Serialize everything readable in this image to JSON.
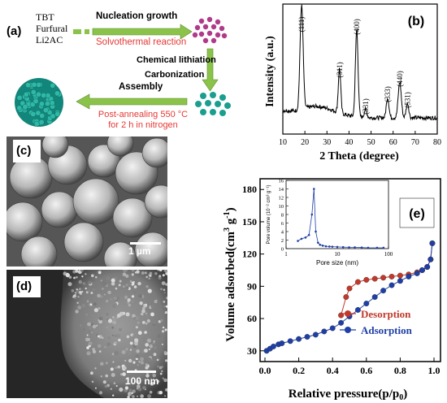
{
  "panel_a": {
    "label": "(a)",
    "precursors": [
      "TBT",
      "Furfural",
      "Li2AC"
    ],
    "step1_top": "Nucleation growth",
    "step1_bottom": "Solvothermal reaction",
    "step2_top": "Chemical lithiation",
    "step2_bottom": "Carbonization",
    "step3_top": "Assembly",
    "step3_bottom_1": "Post-annealing 550 °C",
    "step3_bottom_2": "for 2 h in nitrogen",
    "colors": {
      "arrow": "#8bc34a",
      "red_text": "#e53935",
      "pink_particles": "#b03a8a",
      "teal_particles": "#1a9e8f"
    }
  },
  "panel_b": {
    "label": "(b)",
    "peak_labels": [
      "(111)",
      "(311)",
      "(400)",
      "(331)",
      "(333)",
      "(440)",
      "(531)"
    ]
  },
  "panel_c": {
    "label": "(c)",
    "scale_bar": "1 µm"
  },
  "panel_d": {
    "label": "(d)",
    "scale_bar": "100 nm"
  },
  "panel_e": {
    "label": "(e)",
    "legend": [
      "Desorption",
      "Adsorption"
    ],
    "inset_xlabel": "Pore size (nm)",
    "inset_ylabel": "Pore volume (10⁻² cm³ g⁻¹)"
  },
  "chart_data": [
    {
      "type": "line",
      "xlabel": "2 Theta (degree)",
      "ylabel": "Intensity (a.u.)",
      "xlim": [
        10,
        80
      ],
      "xticks": [
        10,
        20,
        30,
        40,
        50,
        60,
        70,
        80
      ],
      "peaks": [
        {
          "x": 18.5,
          "label": "(111)"
        },
        {
          "x": 35.7,
          "label": "(311)"
        },
        {
          "x": 43.5,
          "label": "(400)"
        },
        {
          "x": 47.5,
          "label": "(331)"
        },
        {
          "x": 57.5,
          "label": "(333)"
        },
        {
          "x": 63.0,
          "label": "(440)"
        },
        {
          "x": 66.5,
          "label": "(531)"
        }
      ]
    },
    {
      "type": "line",
      "xlabel": "Relative pressure(p/p0)",
      "ylabel": "Volume adsorbed(cm3 g-1)",
      "xlim": [
        0.0,
        1.0
      ],
      "ylim": [
        20,
        190
      ],
      "xticks": [
        0.0,
        0.2,
        0.4,
        0.6,
        0.8,
        1.0
      ],
      "yticks": [
        30,
        60,
        90,
        120,
        150,
        180
      ],
      "series": [
        {
          "name": "Desorption",
          "color": "#c0392b",
          "x": [
            0.45,
            0.48,
            0.5,
            0.55,
            0.6,
            0.65,
            0.7,
            0.75,
            0.8,
            0.85,
            0.9,
            0.93,
            0.96,
            0.98,
            0.99
          ],
          "y": [
            63,
            80,
            88,
            94,
            96,
            97,
            98,
            99,
            100,
            101,
            103,
            105,
            108,
            115,
            130
          ]
        },
        {
          "name": "Adsorption",
          "color": "#1f3fa6",
          "x": [
            0.01,
            0.03,
            0.05,
            0.08,
            0.1,
            0.15,
            0.2,
            0.25,
            0.3,
            0.35,
            0.4,
            0.45,
            0.5,
            0.55,
            0.6,
            0.65,
            0.7,
            0.75,
            0.8,
            0.85,
            0.9,
            0.93,
            0.96,
            0.98,
            0.99
          ],
          "y": [
            30,
            32,
            34,
            36,
            37,
            39,
            41,
            43,
            45,
            48,
            51,
            56,
            62,
            68,
            74,
            80,
            86,
            91,
            95,
            99,
            102,
            105,
            108,
            115,
            130
          ]
        }
      ]
    },
    {
      "type": "line",
      "xlabel": "Pore size (nm)",
      "ylabel": "Pore volume (10⁻² cm³ g⁻¹)",
      "xscale": "log",
      "xlim": [
        1,
        100
      ],
      "ylim": [
        0,
        16
      ],
      "yticks": [
        0,
        2,
        4,
        6,
        8,
        10,
        12,
        14,
        16
      ],
      "series": [
        {
          "color": "#1f3fa6",
          "x": [
            1.7,
            2.0,
            2.4,
            2.8,
            3.2,
            3.5,
            3.8,
            4.2,
            4.6,
            5.2,
            6,
            7,
            8,
            10,
            13,
            17,
            22,
            30,
            40,
            60,
            80
          ],
          "y": [
            1.8,
            2.3,
            2.6,
            3.2,
            8.0,
            14.0,
            4.0,
            1.4,
            0.9,
            0.7,
            0.55,
            0.5,
            0.45,
            0.4,
            0.35,
            0.3,
            0.3,
            0.25,
            0.2,
            0.2,
            0.2
          ]
        }
      ]
    }
  ]
}
